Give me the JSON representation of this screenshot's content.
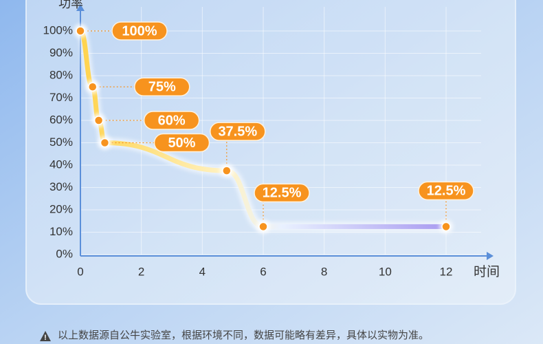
{
  "chart_data": {
    "type": "line",
    "x_label": "时间",
    "y_label": "功率",
    "x": [
      0,
      0.4,
      0.6,
      0.8,
      4.8,
      6,
      12
    ],
    "values": [
      100,
      75,
      60,
      50,
      37.5,
      12.5,
      12.5
    ],
    "value_labels": [
      "100%",
      "75%",
      "60%",
      "50%",
      "37.5%",
      "12.5%",
      "12.5%"
    ],
    "color": "#f7931e",
    "xlim": [
      0,
      12
    ],
    "xticks": [
      0,
      2,
      4,
      6,
      8,
      10,
      12
    ],
    "ylim": [
      0,
      100
    ],
    "yticks": [
      {
        "value": 0,
        "label": "0%"
      },
      {
        "value": 10,
        "label": "10%"
      },
      {
        "value": 20,
        "label": "20%"
      },
      {
        "value": 30,
        "label": "30%"
      },
      {
        "value": 40,
        "label": "40%"
      },
      {
        "value": 50,
        "label": "50%"
      },
      {
        "value": 60,
        "label": "60%"
      },
      {
        "value": 70,
        "label": "70%"
      },
      {
        "value": 80,
        "label": "80%"
      },
      {
        "value": 90,
        "label": "90%"
      },
      {
        "value": 100,
        "label": "100%"
      }
    ],
    "grid": true,
    "note": "以上数据源自公牛实验室，根据环境不同，数据可能略有差异，具体以实物为准。"
  }
}
